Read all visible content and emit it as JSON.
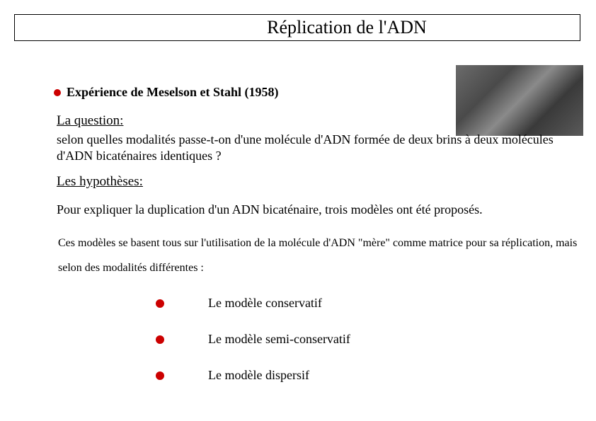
{
  "title": "Réplication de l'ADN",
  "experiment": {
    "label": "Expérience de Meselson et Stahl (1958)"
  },
  "question": {
    "heading": "La question:",
    "body": "selon quelles modalités passe-t-on d'une molécule d'ADN formée de deux brins à deux molécules d'ADN bicaténaires identiques ?"
  },
  "hypotheses": {
    "heading": "Les hypothèses:",
    "body1": "Pour expliquer la duplication d'un ADN bicaténaire, trois modèles ont été proposés.",
    "body2": "Ces modèles se basent tous sur l'utilisation de la molécule d'ADN \"mère\" comme matrice pour sa réplication, mais selon des modalités différentes :"
  },
  "models": [
    "Le modèle conservatif",
    "Le modèle semi-conservatif",
    "Le modèle dispersif"
  ],
  "colors": {
    "bullet": "#cc0000",
    "text": "#000000",
    "background": "#ffffff"
  }
}
